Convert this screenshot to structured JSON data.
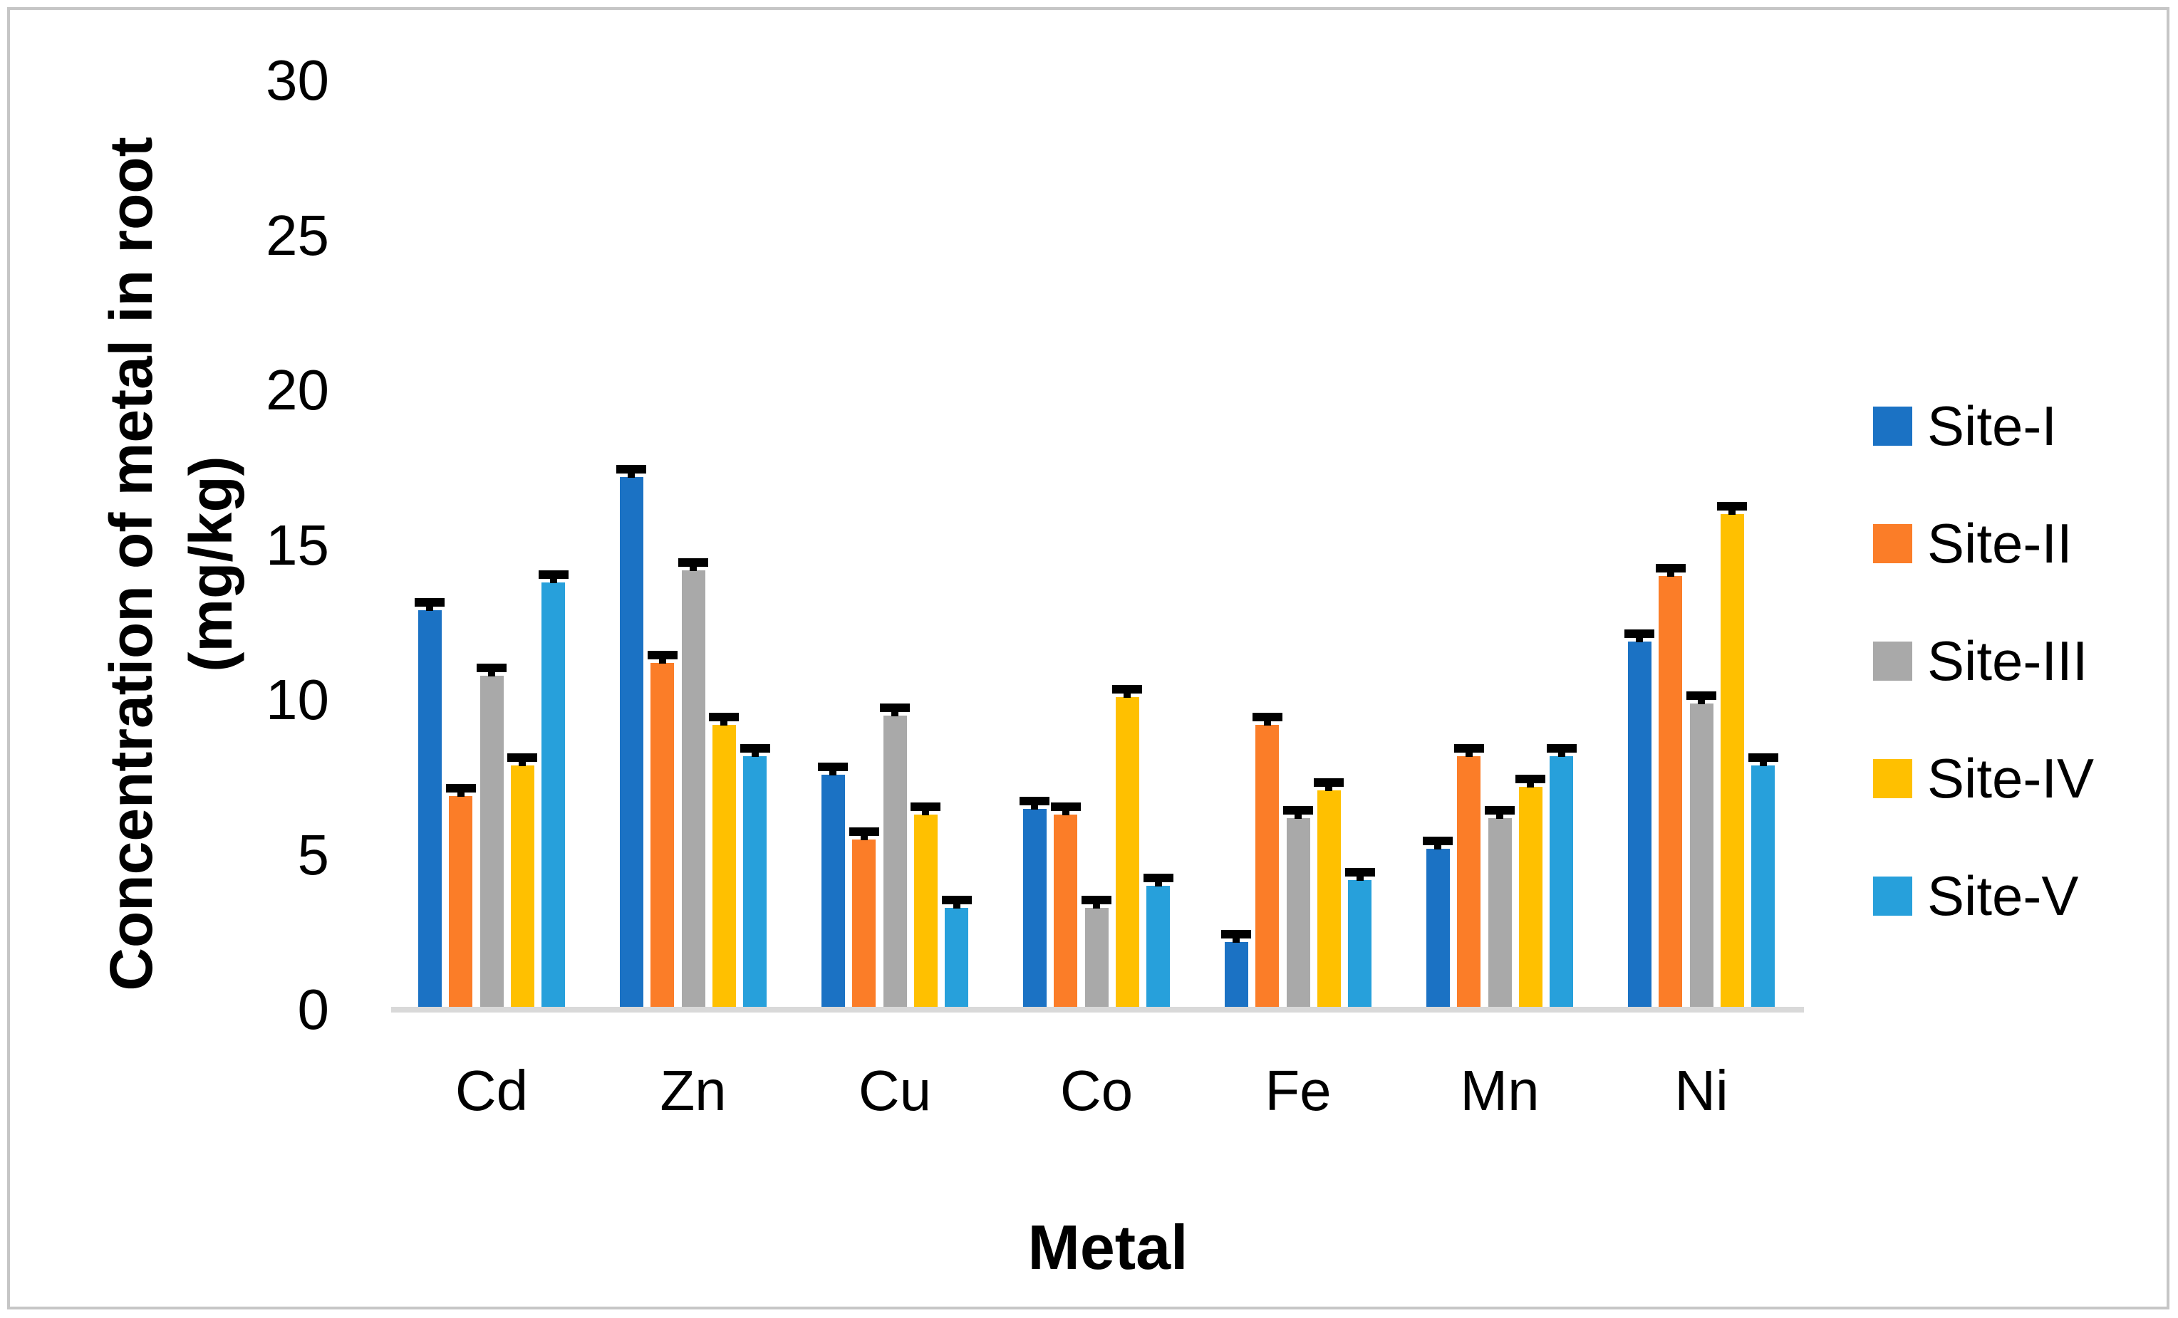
{
  "chart_data": {
    "type": "bar",
    "title": "",
    "xlabel": "Metal",
    "ylabel": "Concentration of metal in root (mg/kg)",
    "ylabel_lines": [
      "Concentration of metal in root",
      "(mg/kg)"
    ],
    "categories": [
      "Cd",
      "Zn",
      "Cu",
      "Co",
      "Fe",
      "Mn",
      "Ni"
    ],
    "yticks": [
      0,
      5,
      10,
      15,
      20,
      25,
      30
    ],
    "ylim": [
      0,
      30
    ],
    "grid": false,
    "legend_position": "right",
    "error_bar_magnitude": 0.3,
    "error_bar_color": "#000000",
    "axis_line_color": "#d9d9d9",
    "frame_color": "#c6c6c6",
    "series": [
      {
        "name": "Site-I",
        "color": "#1B72C4",
        "values": [
          12.8,
          17.1,
          7.5,
          6.4,
          2.1,
          5.1,
          11.8
        ]
      },
      {
        "name": "Site-II",
        "color": "#FB7D28",
        "values": [
          6.8,
          11.1,
          5.4,
          6.2,
          9.1,
          8.1,
          13.9
        ]
      },
      {
        "name": "Site-III",
        "color": "#A9A9A9",
        "values": [
          10.7,
          14.1,
          9.4,
          3.2,
          6.1,
          6.1,
          9.8
        ]
      },
      {
        "name": "Site-IV",
        "color": "#FFC000",
        "values": [
          7.8,
          9.1,
          6.2,
          10.0,
          7.0,
          7.1,
          15.9
        ]
      },
      {
        "name": "Site-V",
        "color": "#27A0DB",
        "values": [
          13.7,
          8.1,
          3.2,
          3.9,
          4.1,
          8.1,
          7.8
        ]
      }
    ]
  }
}
